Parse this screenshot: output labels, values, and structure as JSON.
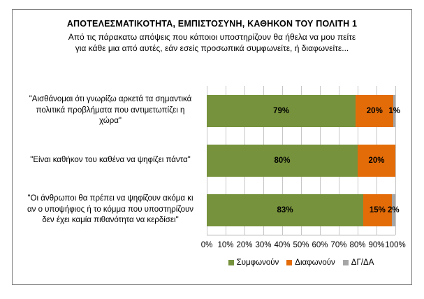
{
  "chart": {
    "title": "ΑΠΟΤΕΛΕΣΜΑΤΙΚΟΤΗΤΑ, ΕΜΠΙΣΤΟΣΥΝΗ, ΚΑΘΗΚΟΝ ΤΟΥ ΠΟΛΙΤΗ 1",
    "subtitle_line1": "Από τις πάρακατω απόψεις που κάποιοι υποστηρίζουν θα ήθελα να μου πείτε",
    "subtitle_line2": "για κάθε μια από αυτές, εάν εσείς προσωπικά συμφωνείτε, ή διαφωνείτε..."
  },
  "chart_data": {
    "type": "bar",
    "orientation": "horizontal",
    "stacked": true,
    "title": "ΑΠΟΤΕΛΕΣΜΑΤΙΚΟΤΗΤΑ, ΕΜΠΙΣΤΟΣΥΝΗ, ΚΑΘΗΚΟΝ ΤΟΥ ΠΟΛΙΤΗ 1",
    "subtitle": "Από τις πάρακατω απόψεις που κάποιοι υποστηρίζουν θα ήθελα να μου πείτε για κάθε μια από αυτές, εάν εσείς προσωπικά συμφωνείτε, ή διαφωνείτε...",
    "categories": [
      "\"Αισθάνομαι ότι γνωρίζω αρκετά τα σημαντικά\nπολιτικά προβλήματα που αντιμετωπίζει η\nχώρα\"",
      "\"Είναι καθήκον του καθένα να ψηφίζει πάντα\"",
      "\"Οι άνθρωποι θα πρέπει να ψηφίζουν ακόμα κι\nαν ο υποψήφιος ή το κόμμα που υποστηρίζουν\nδεν έχει καμία πιθανότητα να κερδίσει\""
    ],
    "series": [
      {
        "name": "Συμφωνούν",
        "color": "#76923C",
        "values": [
          79,
          80,
          83
        ]
      },
      {
        "name": "Διαφωνούν",
        "color": "#E36C09",
        "values": [
          20,
          20,
          15
        ]
      },
      {
        "name": "ΔΓ/ΔΑ",
        "color": "#A6A6A6",
        "values": [
          1,
          0,
          2
        ]
      }
    ],
    "data_label_format": "{value}%",
    "x_ticks": [
      "0%",
      "10%",
      "20%",
      "30%",
      "40%",
      "50%",
      "60%",
      "70%",
      "80%",
      "90%",
      "100%"
    ],
    "xlim": [
      0,
      100
    ],
    "grid": "vertical-major",
    "gridline_color": "#C6C6C6",
    "legend_position": "bottom"
  }
}
